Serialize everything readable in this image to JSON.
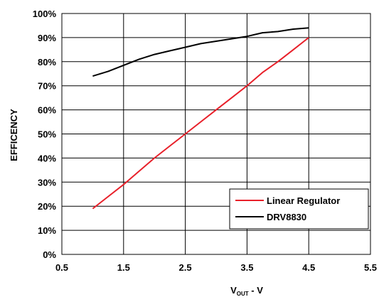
{
  "chart_data": {
    "type": "line",
    "title": "",
    "xlabel": {
      "main": "V",
      "sub": "OUT",
      "suffix": " - V"
    },
    "ylabel": "EFFICENCY",
    "xlim": [
      0.5,
      5.5
    ],
    "ylim": [
      0,
      100
    ],
    "x_ticks": [
      "0.5",
      "1.5",
      "2.5",
      "3.5",
      "4.5",
      "5.5"
    ],
    "y_ticks": [
      "0%",
      "10%",
      "20%",
      "30%",
      "40%",
      "50%",
      "60%",
      "70%",
      "80%",
      "90%",
      "100%"
    ],
    "grid": "on",
    "legend_position": "bottom-right",
    "series": [
      {
        "name": "Linear Regulator",
        "color": "#e8202a",
        "points": [
          [
            1.0,
            19
          ],
          [
            1.25,
            24
          ],
          [
            1.5,
            29
          ],
          [
            1.75,
            34.5
          ],
          [
            2.0,
            40
          ],
          [
            2.25,
            45
          ],
          [
            2.5,
            50
          ],
          [
            2.75,
            55
          ],
          [
            3.0,
            60
          ],
          [
            3.25,
            65
          ],
          [
            3.5,
            70
          ],
          [
            3.75,
            75.5
          ],
          [
            4.0,
            80
          ],
          [
            4.25,
            85
          ],
          [
            4.5,
            90
          ]
        ]
      },
      {
        "name": "DRV8830",
        "color": "#000000",
        "points": [
          [
            1.0,
            74
          ],
          [
            1.25,
            76
          ],
          [
            1.5,
            78.5
          ],
          [
            1.75,
            81
          ],
          [
            2.0,
            83
          ],
          [
            2.25,
            84.5
          ],
          [
            2.5,
            86
          ],
          [
            2.75,
            87.5
          ],
          [
            3.0,
            88.5
          ],
          [
            3.25,
            89.5
          ],
          [
            3.5,
            90.5
          ],
          [
            3.75,
            92
          ],
          [
            4.0,
            92.5
          ],
          [
            4.25,
            93.5
          ],
          [
            4.5,
            94
          ]
        ]
      }
    ]
  }
}
